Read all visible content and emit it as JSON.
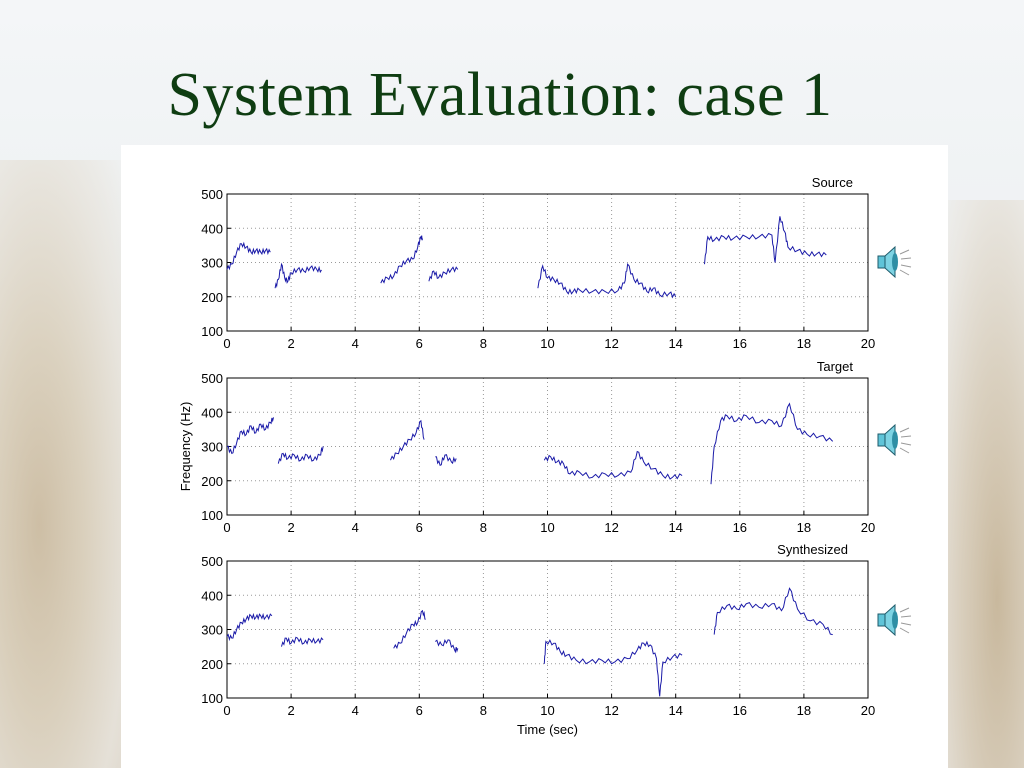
{
  "slide": {
    "title": "System Evaluation: case 1"
  },
  "colors": {
    "title": "#0f3d12",
    "series": "#1a1aa8",
    "grid": "#9a9a9a"
  },
  "icons": [
    "speaker-icon",
    "speaker-icon",
    "speaker-icon"
  ],
  "chart_data": [
    {
      "type": "line",
      "title": "Source",
      "xlabel": "",
      "ylabel": "",
      "xlim": [
        0,
        20
      ],
      "ylim": [
        100,
        500
      ],
      "xticks": [
        "0",
        "2",
        "4",
        "6",
        "8",
        "10",
        "12",
        "14",
        "16",
        "18",
        "20"
      ],
      "yticks": [
        "100",
        "200",
        "300",
        "400",
        "500"
      ],
      "grid": true,
      "series": [
        {
          "segments": [
            [
              [
                0.0,
                280
              ],
              [
                0.15,
                295
              ],
              [
                0.3,
                330
              ],
              [
                0.45,
                355
              ],
              [
                0.6,
                345
              ],
              [
                0.75,
                330
              ],
              [
                0.9,
                335
              ],
              [
                1.05,
                330
              ],
              [
                1.2,
                335
              ],
              [
                1.35,
                330
              ]
            ],
            [
              [
                1.5,
                225
              ],
              [
                1.6,
                250
              ],
              [
                1.7,
                295
              ],
              [
                1.8,
                255
              ],
              [
                1.9,
                245
              ],
              [
                2.0,
                270
              ],
              [
                2.2,
                280
              ],
              [
                2.4,
                275
              ],
              [
                2.6,
                285
              ],
              [
                2.8,
                280
              ],
              [
                2.95,
                278
              ]
            ],
            [
              [
                4.8,
                240
              ],
              [
                5.0,
                255
              ],
              [
                5.2,
                260
              ],
              [
                5.4,
                290
              ],
              [
                5.6,
                305
              ],
              [
                5.8,
                310
              ],
              [
                5.95,
                345
              ],
              [
                6.05,
                375
              ],
              [
                6.1,
                370
              ]
            ],
            [
              [
                6.3,
                245
              ],
              [
                6.45,
                275
              ],
              [
                6.6,
                255
              ],
              [
                6.8,
                270
              ],
              [
                7.0,
                280
              ],
              [
                7.2,
                280
              ]
            ],
            [
              [
                9.7,
                225
              ],
              [
                9.85,
                290
              ],
              [
                10.0,
                255
              ],
              [
                10.2,
                250
              ],
              [
                10.4,
                240
              ],
              [
                10.6,
                215
              ],
              [
                10.8,
                215
              ],
              [
                11.0,
                220
              ],
              [
                11.4,
                215
              ],
              [
                11.8,
                215
              ],
              [
                12.2,
                218
              ],
              [
                12.4,
                240
              ],
              [
                12.5,
                295
              ],
              [
                12.7,
                250
              ],
              [
                12.9,
                240
              ],
              [
                13.1,
                215
              ],
              [
                13.3,
                225
              ],
              [
                13.5,
                205
              ],
              [
                13.8,
                210
              ],
              [
                14.0,
                200
              ]
            ],
            [
              [
                14.9,
                295
              ],
              [
                15.0,
                375
              ],
              [
                15.2,
                365
              ],
              [
                15.5,
                375
              ],
              [
                15.8,
                370
              ],
              [
                16.2,
                375
              ],
              [
                16.6,
                375
              ],
              [
                17.0,
                380
              ],
              [
                17.1,
                300
              ],
              [
                17.25,
                435
              ],
              [
                17.4,
                390
              ],
              [
                17.5,
                345
              ],
              [
                17.8,
                335
              ],
              [
                18.1,
                325
              ],
              [
                18.4,
                325
              ],
              [
                18.7,
                322
              ]
            ]
          ]
        }
      ]
    },
    {
      "type": "line",
      "title": "Target",
      "xlabel": "",
      "ylabel": "Frequency (Hz)",
      "xlim": [
        0,
        20
      ],
      "ylim": [
        100,
        500
      ],
      "xticks": [
        "0",
        "2",
        "4",
        "6",
        "8",
        "10",
        "12",
        "14",
        "16",
        "18",
        "20"
      ],
      "yticks": [
        "100",
        "200",
        "300",
        "400",
        "500"
      ],
      "grid": true,
      "series": [
        {
          "segments": [
            [
              [
                0.0,
                300
              ],
              [
                0.15,
                280
              ],
              [
                0.3,
                310
              ],
              [
                0.45,
                345
              ],
              [
                0.6,
                335
              ],
              [
                0.75,
                360
              ],
              [
                0.9,
                340
              ],
              [
                1.05,
                365
              ],
              [
                1.2,
                350
              ],
              [
                1.35,
                370
              ],
              [
                1.45,
                385
              ]
            ],
            [
              [
                1.6,
                250
              ],
              [
                1.75,
                280
              ],
              [
                1.9,
                265
              ],
              [
                2.1,
                275
              ],
              [
                2.3,
                260
              ],
              [
                2.5,
                275
              ],
              [
                2.7,
                260
              ],
              [
                2.9,
                275
              ],
              [
                3.0,
                300
              ]
            ],
            [
              [
                5.1,
                260
              ],
              [
                5.3,
                280
              ],
              [
                5.5,
                300
              ],
              [
                5.7,
                320
              ],
              [
                5.9,
                340
              ],
              [
                6.05,
                375
              ],
              [
                6.15,
                320
              ]
            ],
            [
              [
                6.5,
                270
              ],
              [
                6.65,
                245
              ],
              [
                6.8,
                275
              ],
              [
                7.0,
                255
              ],
              [
                7.15,
                265
              ]
            ],
            [
              [
                9.9,
                260
              ],
              [
                10.1,
                270
              ],
              [
                10.3,
                255
              ],
              [
                10.5,
                250
              ],
              [
                10.7,
                220
              ],
              [
                11.0,
                225
              ],
              [
                11.4,
                210
              ],
              [
                11.8,
                220
              ],
              [
                12.2,
                215
              ],
              [
                12.6,
                225
              ],
              [
                12.8,
                285
              ],
              [
                13.0,
                255
              ],
              [
                13.3,
                235
              ],
              [
                13.6,
                215
              ],
              [
                13.9,
                210
              ],
              [
                14.2,
                215
              ]
            ],
            [
              [
                15.1,
                190
              ],
              [
                15.2,
                300
              ],
              [
                15.4,
                375
              ],
              [
                15.6,
                390
              ],
              [
                15.9,
                375
              ],
              [
                16.2,
                390
              ],
              [
                16.6,
                370
              ],
              [
                17.0,
                375
              ],
              [
                17.3,
                360
              ],
              [
                17.55,
                425
              ],
              [
                17.8,
                350
              ],
              [
                18.1,
                335
              ],
              [
                18.5,
                330
              ],
              [
                18.9,
                315
              ]
            ]
          ]
        }
      ]
    },
    {
      "type": "line",
      "title": "Synthesized",
      "xlabel": "Time (sec)",
      "ylabel": "",
      "xlim": [
        0,
        20
      ],
      "ylim": [
        100,
        500
      ],
      "xticks": [
        "0",
        "2",
        "4",
        "6",
        "8",
        "10",
        "12",
        "14",
        "16",
        "18",
        "20"
      ],
      "yticks": [
        "100",
        "200",
        "300",
        "400",
        "500"
      ],
      "grid": true,
      "series": [
        {
          "segments": [
            [
              [
                0.0,
                280
              ],
              [
                0.15,
                275
              ],
              [
                0.3,
                300
              ],
              [
                0.45,
                320
              ],
              [
                0.6,
                330
              ],
              [
                0.75,
                340
              ],
              [
                0.9,
                335
              ],
              [
                1.05,
                340
              ],
              [
                1.2,
                335
              ],
              [
                1.4,
                340
              ]
            ],
            [
              [
                1.7,
                250
              ],
              [
                1.85,
                275
              ],
              [
                2.0,
                260
              ],
              [
                2.2,
                275
              ],
              [
                2.4,
                260
              ],
              [
                2.6,
                270
              ],
              [
                2.8,
                265
              ],
              [
                3.0,
                270
              ]
            ],
            [
              [
                5.2,
                245
              ],
              [
                5.4,
                260
              ],
              [
                5.6,
                290
              ],
              [
                5.8,
                315
              ],
              [
                5.95,
                320
              ],
              [
                6.1,
                355
              ],
              [
                6.2,
                330
              ]
            ],
            [
              [
                6.5,
                265
              ],
              [
                6.7,
                255
              ],
              [
                6.9,
                270
              ],
              [
                7.1,
                240
              ],
              [
                7.2,
                245
              ]
            ],
            [
              [
                9.9,
                200
              ],
              [
                9.95,
                265
              ],
              [
                10.2,
                260
              ],
              [
                10.4,
                235
              ],
              [
                10.6,
                225
              ],
              [
                10.9,
                210
              ],
              [
                11.3,
                205
              ],
              [
                11.7,
                210
              ],
              [
                12.1,
                205
              ],
              [
                12.5,
                215
              ],
              [
                12.8,
                240
              ],
              [
                13.0,
                260
              ],
              [
                13.2,
                255
              ],
              [
                13.4,
                215
              ],
              [
                13.5,
                105
              ],
              [
                13.6,
                205
              ],
              [
                13.9,
                220
              ],
              [
                14.2,
                225
              ]
            ],
            [
              [
                15.2,
                285
              ],
              [
                15.3,
                350
              ],
              [
                15.6,
                370
              ],
              [
                15.9,
                360
              ],
              [
                16.2,
                375
              ],
              [
                16.6,
                365
              ],
              [
                17.0,
                375
              ],
              [
                17.3,
                355
              ],
              [
                17.55,
                420
              ],
              [
                17.8,
                360
              ],
              [
                18.2,
                325
              ],
              [
                18.6,
                315
              ],
              [
                18.9,
                285
              ]
            ]
          ]
        }
      ]
    }
  ]
}
